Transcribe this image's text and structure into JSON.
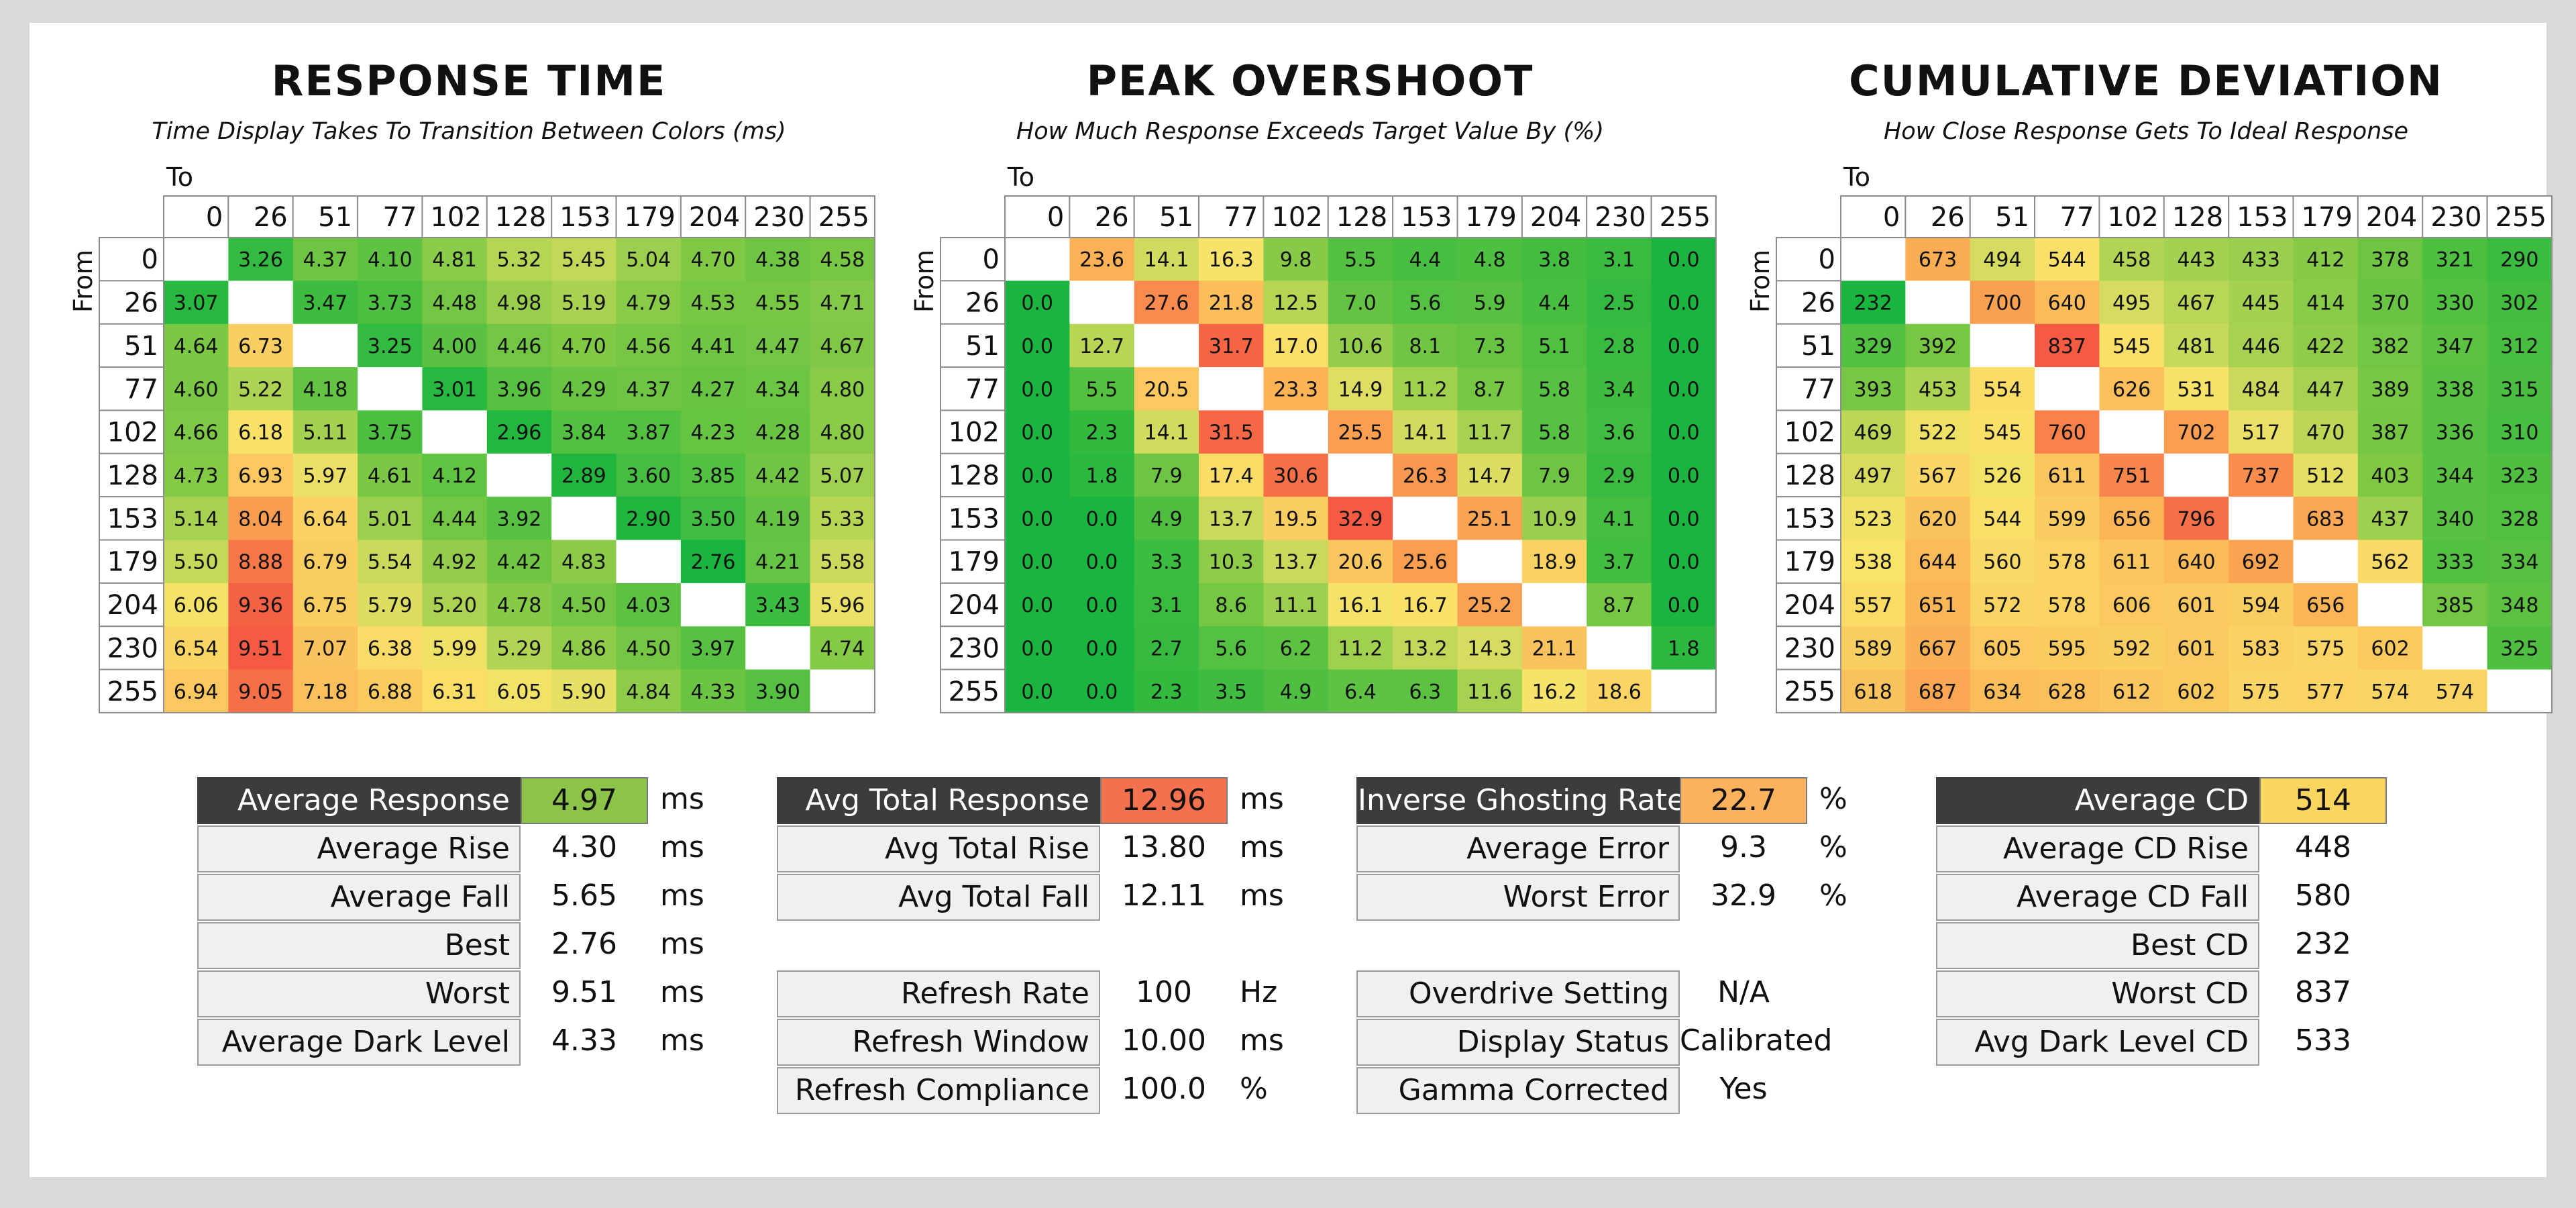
{
  "chart_data": [
    {
      "type": "heatmap",
      "title": "RESPONSE TIME",
      "subtitle": "Time Display Takes To Transition Between Colors (ms)",
      "xlabel": "To",
      "ylabel": "From",
      "levels": [
        "0",
        "26",
        "51",
        "77",
        "102",
        "128",
        "153",
        "179",
        "204",
        "230",
        "255"
      ],
      "matrix": [
        [
          null,
          "3.26",
          "4.37",
          "4.10",
          "4.81",
          "5.32",
          "5.45",
          "5.04",
          "4.70",
          "4.38",
          "4.58"
        ],
        [
          "3.07",
          null,
          "3.47",
          "3.73",
          "4.48",
          "4.98",
          "5.19",
          "4.79",
          "4.53",
          "4.55",
          "4.71"
        ],
        [
          "4.64",
          "6.73",
          null,
          "3.25",
          "4.00",
          "4.46",
          "4.70",
          "4.56",
          "4.41",
          "4.47",
          "4.67"
        ],
        [
          "4.60",
          "5.22",
          "4.18",
          null,
          "3.01",
          "3.96",
          "4.29",
          "4.37",
          "4.27",
          "4.34",
          "4.80"
        ],
        [
          "4.66",
          "6.18",
          "5.11",
          "3.75",
          null,
          "2.96",
          "3.84",
          "3.87",
          "4.23",
          "4.28",
          "4.80"
        ],
        [
          "4.73",
          "6.93",
          "5.97",
          "4.61",
          "4.12",
          null,
          "2.89",
          "3.60",
          "3.85",
          "4.42",
          "5.07"
        ],
        [
          "5.14",
          "8.04",
          "6.64",
          "5.01",
          "4.44",
          "3.92",
          null,
          "2.90",
          "3.50",
          "4.19",
          "5.33"
        ],
        [
          "5.50",
          "8.88",
          "6.79",
          "5.54",
          "4.92",
          "4.42",
          "4.83",
          null,
          "2.76",
          "4.21",
          "5.58"
        ],
        [
          "6.06",
          "9.36",
          "6.75",
          "5.79",
          "5.20",
          "4.78",
          "4.50",
          "4.03",
          null,
          "3.43",
          "5.96"
        ],
        [
          "6.54",
          "9.51",
          "7.07",
          "6.38",
          "5.99",
          "5.29",
          "4.86",
          "4.50",
          "3.97",
          null,
          "4.74"
        ],
        [
          "6.94",
          "9.05",
          "7.18",
          "6.88",
          "6.31",
          "6.05",
          "5.90",
          "4.84",
          "4.33",
          "3.90",
          null
        ]
      ]
    },
    {
      "type": "heatmap",
      "title": "PEAK OVERSHOOT",
      "subtitle": "How Much Response Exceeds Target Value By (%)",
      "xlabel": "To",
      "ylabel": "From",
      "levels": [
        "0",
        "26",
        "51",
        "77",
        "102",
        "128",
        "153",
        "179",
        "204",
        "230",
        "255"
      ],
      "matrix": [
        [
          null,
          "23.6",
          "14.1",
          "16.3",
          "9.8",
          "5.5",
          "4.4",
          "4.8",
          "3.8",
          "3.1",
          "0.0"
        ],
        [
          "0.0",
          null,
          "27.6",
          "21.8",
          "12.5",
          "7.0",
          "5.6",
          "5.9",
          "4.4",
          "2.5",
          "0.0"
        ],
        [
          "0.0",
          "12.7",
          null,
          "31.7",
          "17.0",
          "10.6",
          "8.1",
          "7.3",
          "5.1",
          "2.8",
          "0.0"
        ],
        [
          "0.0",
          "5.5",
          "20.5",
          null,
          "23.3",
          "14.9",
          "11.2",
          "8.7",
          "5.8",
          "3.4",
          "0.0"
        ],
        [
          "0.0",
          "2.3",
          "14.1",
          "31.5",
          null,
          "25.5",
          "14.1",
          "11.7",
          "5.8",
          "3.6",
          "0.0"
        ],
        [
          "0.0",
          "1.8",
          "7.9",
          "17.4",
          "30.6",
          null,
          "26.3",
          "14.7",
          "7.9",
          "2.9",
          "0.0"
        ],
        [
          "0.0",
          "0.0",
          "4.9",
          "13.7",
          "19.5",
          "32.9",
          null,
          "25.1",
          "10.9",
          "4.1",
          "0.0"
        ],
        [
          "0.0",
          "0.0",
          "3.3",
          "10.3",
          "13.7",
          "20.6",
          "25.6",
          null,
          "18.9",
          "3.7",
          "0.0"
        ],
        [
          "0.0",
          "0.0",
          "3.1",
          "8.6",
          "11.1",
          "16.1",
          "16.7",
          "25.2",
          null,
          "8.7",
          "0.0"
        ],
        [
          "0.0",
          "0.0",
          "2.7",
          "5.6",
          "6.2",
          "11.2",
          "13.2",
          "14.3",
          "21.1",
          null,
          "1.8"
        ],
        [
          "0.0",
          "0.0",
          "2.3",
          "3.5",
          "4.9",
          "6.4",
          "6.3",
          "11.6",
          "16.2",
          "18.6",
          null
        ]
      ]
    },
    {
      "type": "heatmap",
      "title": "CUMULATIVE DEVIATION",
      "subtitle": "How Close Response Gets To Ideal Response",
      "xlabel": "To",
      "ylabel": "From",
      "levels": [
        "0",
        "26",
        "51",
        "77",
        "102",
        "128",
        "153",
        "179",
        "204",
        "230",
        "255"
      ],
      "matrix": [
        [
          null,
          "673",
          "494",
          "544",
          "458",
          "443",
          "433",
          "412",
          "378",
          "321",
          "290"
        ],
        [
          "232",
          null,
          "700",
          "640",
          "495",
          "467",
          "445",
          "414",
          "370",
          "330",
          "302"
        ],
        [
          "329",
          "392",
          null,
          "837",
          "545",
          "481",
          "446",
          "422",
          "382",
          "347",
          "312"
        ],
        [
          "393",
          "453",
          "554",
          null,
          "626",
          "531",
          "484",
          "447",
          "389",
          "338",
          "315"
        ],
        [
          "469",
          "522",
          "545",
          "760",
          null,
          "702",
          "517",
          "470",
          "387",
          "336",
          "310"
        ],
        [
          "497",
          "567",
          "526",
          "611",
          "751",
          null,
          "737",
          "512",
          "403",
          "344",
          "323"
        ],
        [
          "523",
          "620",
          "544",
          "599",
          "656",
          "796",
          null,
          "683",
          "437",
          "340",
          "328"
        ],
        [
          "538",
          "644",
          "560",
          "578",
          "611",
          "640",
          "692",
          null,
          "562",
          "333",
          "334"
        ],
        [
          "557",
          "651",
          "572",
          "578",
          "606",
          "601",
          "594",
          "656",
          null,
          "385",
          "348"
        ],
        [
          "589",
          "667",
          "605",
          "595",
          "592",
          "601",
          "583",
          "575",
          "602",
          null,
          "325"
        ],
        [
          "618",
          "687",
          "634",
          "628",
          "612",
          "602",
          "575",
          "577",
          "574",
          "574",
          null
        ]
      ]
    }
  ],
  "stats": [
    {
      "rows": [
        {
          "label": "Average Response",
          "value": "4.97",
          "unit": "ms",
          "header": true,
          "color": "#8cc44a"
        },
        {
          "label": "Average Rise",
          "value": "4.30",
          "unit": "ms"
        },
        {
          "label": "Average Fall",
          "value": "5.65",
          "unit": "ms"
        },
        {
          "label": "Best",
          "value": "2.76",
          "unit": "ms"
        },
        {
          "label": "Worst",
          "value": "9.51",
          "unit": "ms"
        },
        {
          "label": "Average Dark Level",
          "value": "4.33",
          "unit": "ms"
        }
      ]
    },
    {
      "rows": [
        {
          "label": "Avg Total Response",
          "value": "12.96",
          "unit": "ms",
          "header": true,
          "color": "#f4714f"
        },
        {
          "label": "Avg Total Rise",
          "value": "13.80",
          "unit": "ms"
        },
        {
          "label": "Avg Total Fall",
          "value": "12.11",
          "unit": "ms"
        },
        {
          "gap": true
        },
        {
          "label": "Refresh Rate",
          "value": "100",
          "unit": "Hz"
        },
        {
          "label": "Refresh Window",
          "value": "10.00",
          "unit": "ms"
        },
        {
          "label": "Refresh Compliance",
          "value": "100.0",
          "unit": "%"
        }
      ]
    },
    {
      "rows": [
        {
          "label": "Inverse Ghosting Rate",
          "value": "22.7",
          "unit": "%",
          "header": true,
          "color": "#fbb25e"
        },
        {
          "label": "Average Error",
          "value": "9.3",
          "unit": "%"
        },
        {
          "label": "Worst Error",
          "value": "32.9",
          "unit": "%"
        },
        {
          "gap": true
        },
        {
          "label": "Overdrive Setting",
          "value": "N/A",
          "unit": ""
        },
        {
          "label": "Display Status",
          "value": "Calibrated",
          "unit": ""
        },
        {
          "label": "Gamma Corrected",
          "value": "Yes",
          "unit": ""
        }
      ]
    },
    {
      "rows": [
        {
          "label": "Average CD",
          "value": "514",
          "unit": "",
          "header": true,
          "color": "#fbd65e"
        },
        {
          "label": "Average CD Rise",
          "value": "448",
          "unit": ""
        },
        {
          "label": "Average CD Fall",
          "value": "580",
          "unit": ""
        },
        {
          "label": "Best CD",
          "value": "232",
          "unit": ""
        },
        {
          "label": "Worst CD",
          "value": "837",
          "unit": ""
        },
        {
          "label": "Avg Dark Level CD",
          "value": "533",
          "unit": ""
        }
      ]
    }
  ]
}
